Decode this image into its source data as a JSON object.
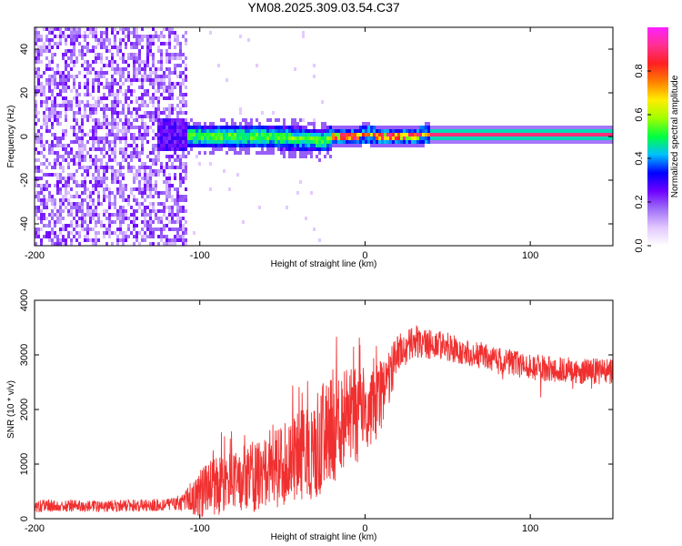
{
  "title": "YM08.2025.309.03.54.C37",
  "chart_data": [
    {
      "type": "heatmap",
      "name": "spectrogram",
      "xlabel": "Height of straight line (km)",
      "ylabel": "Frequency (Hz)",
      "xlim": [
        -200,
        150
      ],
      "ylim": [
        -50,
        50
      ],
      "xticks": [
        -200,
        -100,
        0,
        100
      ],
      "xtick_labels": [
        "-200",
        "-100",
        "0",
        "100"
      ],
      "yticks": [
        -40,
        -20,
        0,
        20,
        40
      ],
      "ytick_labels": [
        "-40",
        "-20",
        "0",
        "20",
        "40"
      ],
      "ridge": [
        {
          "x": -120,
          "y": 1
        },
        {
          "x": -100,
          "y": 0
        },
        {
          "x": -80,
          "y": 0
        },
        {
          "x": -60,
          "y": 0
        },
        {
          "x": -40,
          "y": -1
        },
        {
          "x": -25,
          "y": -2
        },
        {
          "x": -20,
          "y": 0
        },
        {
          "x": -10,
          "y": 0
        },
        {
          "x": 0,
          "y": 1
        },
        {
          "x": 20,
          "y": 0
        },
        {
          "x": 40,
          "y": 1
        },
        {
          "x": 80,
          "y": 1
        },
        {
          "x": 150,
          "y": 1
        }
      ],
      "colorbar": {
        "label": "Normalized spectral amplitude",
        "range": [
          0,
          1
        ],
        "ticks": [
          0.0,
          0.2,
          0.4,
          0.6,
          0.8
        ],
        "tick_labels": [
          "0.0",
          "0.2",
          "0.4",
          "0.6",
          "0.8"
        ],
        "colors": [
          "#ffffff",
          "#e2c8ff",
          "#a070f8",
          "#6e00ff",
          "#0000ff",
          "#00c0ff",
          "#00ff40",
          "#a0ff00",
          "#ffee00",
          "#ff8000",
          "#ff2020",
          "#ff3090",
          "#ff20ff"
        ]
      }
    },
    {
      "type": "line",
      "name": "snr",
      "xlabel": "Height of straight line (km)",
      "ylabel": "SNR (10 * v/v)",
      "xlim": [
        -200,
        150
      ],
      "ylim": [
        0,
        4000
      ],
      "xticks": [
        -200,
        -100,
        0,
        100
      ],
      "xtick_labels": [
        "-200",
        "-100",
        "0",
        "100"
      ],
      "yticks": [
        0,
        1000,
        2000,
        3000,
        4000
      ],
      "ytick_labels": [
        "0",
        "1000",
        "2000",
        "3000",
        "4000"
      ],
      "color": "#f03030",
      "series": [
        {
          "name": "snr",
          "x": [
            -200,
            -180,
            -160,
            -140,
            -120,
            -110,
            -100,
            -90,
            -80,
            -70,
            -60,
            -50,
            -40,
            -30,
            -20,
            -10,
            0,
            10,
            20,
            30,
            40,
            50,
            60,
            70,
            80,
            90,
            100,
            110,
            120,
            130,
            140,
            150
          ],
          "values": [
            230,
            240,
            230,
            240,
            250,
            300,
            450,
            600,
            700,
            750,
            850,
            950,
            1150,
            1300,
            1700,
            1800,
            2000,
            2200,
            3050,
            3250,
            3200,
            3150,
            3050,
            3000,
            2900,
            2850,
            2780,
            2750,
            2720,
            2700,
            2700,
            2700
          ]
        },
        {
          "name": "spread",
          "x": [
            -200,
            -180,
            -160,
            -140,
            -120,
            -110,
            -100,
            -90,
            -80,
            -70,
            -60,
            -50,
            -40,
            -30,
            -20,
            -10,
            0,
            10,
            20,
            30,
            40,
            50,
            60,
            70,
            80,
            90,
            100,
            110,
            120,
            130,
            140,
            150
          ],
          "values": [
            120,
            110,
            110,
            110,
            120,
            160,
            450,
            550,
            550,
            650,
            650,
            750,
            850,
            950,
            1050,
            950,
            850,
            700,
            350,
            300,
            280,
            260,
            250,
            250,
            250,
            250,
            250,
            250,
            250,
            250,
            250,
            250
          ]
        }
      ]
    }
  ]
}
